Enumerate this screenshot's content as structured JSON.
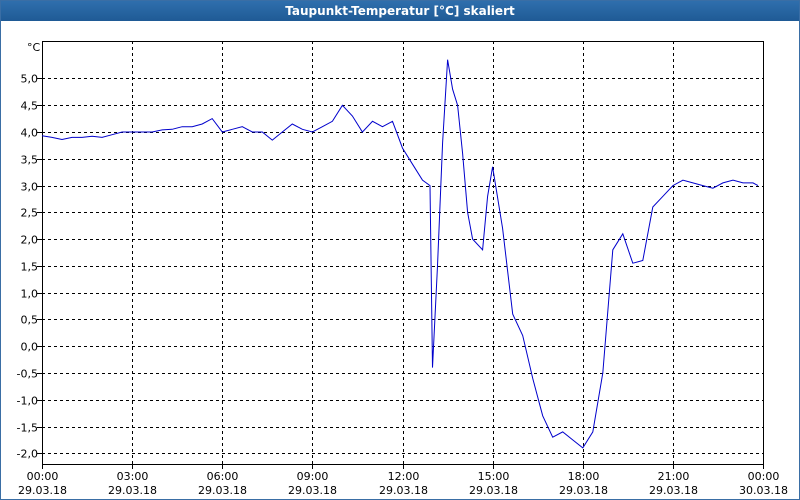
{
  "window": {
    "title": "Taupunkt-Temperatur [°C] skaliert"
  },
  "chart_data": {
    "type": "line",
    "title": "Taupunkt-Temperatur [°C] skaliert",
    "ylabel": "°C",
    "xlabel": "",
    "ylim": [
      -2.2,
      5.7
    ],
    "xlim_hours": [
      0,
      24
    ],
    "grid": true,
    "y_ticks": [
      "5,0",
      "4,5",
      "4,0",
      "3,5",
      "3,0",
      "2,5",
      "2,0",
      "1,5",
      "1,0",
      "0,5",
      "0,0",
      "-0,5",
      "-1,0",
      "-1,5",
      "-2,0"
    ],
    "x_ticks": [
      {
        "time": "00:00",
        "date": "29.03.18"
      },
      {
        "time": "03:00",
        "date": "29.03.18"
      },
      {
        "time": "06:00",
        "date": "29.03.18"
      },
      {
        "time": "09:00",
        "date": "29.03.18"
      },
      {
        "time": "12:00",
        "date": "29.03.18"
      },
      {
        "time": "15:00",
        "date": "29.03.18"
      },
      {
        "time": "18:00",
        "date": "29.03.18"
      },
      {
        "time": "21:00",
        "date": "29.03.18"
      },
      {
        "time": "00:00",
        "date": "30.03.18"
      }
    ],
    "series": [
      {
        "color": "#0000cc",
        "points": [
          [
            "00:00",
            3.93
          ],
          [
            "00:20",
            3.9
          ],
          [
            "00:40",
            3.86
          ],
          [
            "01:00",
            3.9
          ],
          [
            "01:20",
            3.9
          ],
          [
            "01:40",
            3.92
          ],
          [
            "02:00",
            3.9
          ],
          [
            "02:20",
            3.95
          ],
          [
            "02:40",
            4.0
          ],
          [
            "03:00",
            4.0
          ],
          [
            "03:20",
            4.0
          ],
          [
            "03:40",
            4.0
          ],
          [
            "04:00",
            4.04
          ],
          [
            "04:20",
            4.05
          ],
          [
            "04:40",
            4.1
          ],
          [
            "05:00",
            4.1
          ],
          [
            "05:20",
            4.15
          ],
          [
            "05:40",
            4.25
          ],
          [
            "06:00",
            4.0
          ],
          [
            "06:20",
            4.05
          ],
          [
            "06:40",
            4.1
          ],
          [
            "07:00",
            4.0
          ],
          [
            "07:20",
            4.0
          ],
          [
            "07:40",
            3.85
          ],
          [
            "08:00",
            4.0
          ],
          [
            "08:20",
            4.15
          ],
          [
            "08:40",
            4.05
          ],
          [
            "09:00",
            4.0
          ],
          [
            "09:20",
            4.1
          ],
          [
            "09:40",
            4.2
          ],
          [
            "10:00",
            4.5
          ],
          [
            "10:20",
            4.3
          ],
          [
            "10:40",
            4.0
          ],
          [
            "11:00",
            4.2
          ],
          [
            "11:20",
            4.1
          ],
          [
            "11:40",
            4.2
          ],
          [
            "12:00",
            3.7
          ],
          [
            "12:20",
            3.4
          ],
          [
            "12:40",
            3.1
          ],
          [
            "12:55",
            3.0
          ],
          [
            "13:00",
            -0.4
          ],
          [
            "13:10",
            1.5
          ],
          [
            "13:20",
            3.8
          ],
          [
            "13:30",
            5.35
          ],
          [
            "13:40",
            4.8
          ],
          [
            "13:50",
            4.5
          ],
          [
            "14:00",
            3.6
          ],
          [
            "14:10",
            2.5
          ],
          [
            "14:20",
            2.0
          ],
          [
            "14:40",
            1.8
          ],
          [
            "14:50",
            2.8
          ],
          [
            "15:00",
            3.35
          ],
          [
            "15:20",
            2.2
          ],
          [
            "15:40",
            0.6
          ],
          [
            "16:00",
            0.2
          ],
          [
            "16:20",
            -0.6
          ],
          [
            "16:40",
            -1.3
          ],
          [
            "17:00",
            -1.7
          ],
          [
            "17:20",
            -1.6
          ],
          [
            "17:40",
            -1.75
          ],
          [
            "18:00",
            -1.9
          ],
          [
            "18:20",
            -1.6
          ],
          [
            "18:40",
            -0.5
          ],
          [
            "19:00",
            1.8
          ],
          [
            "19:20",
            2.1
          ],
          [
            "19:40",
            1.55
          ],
          [
            "20:00",
            1.6
          ],
          [
            "20:20",
            2.6
          ],
          [
            "20:40",
            2.8
          ],
          [
            "21:00",
            3.0
          ],
          [
            "21:20",
            3.1
          ],
          [
            "21:40",
            3.05
          ],
          [
            "22:00",
            3.0
          ],
          [
            "22:20",
            2.95
          ],
          [
            "22:40",
            3.05
          ],
          [
            "23:00",
            3.1
          ],
          [
            "23:20",
            3.05
          ],
          [
            "23:40",
            3.05
          ],
          [
            "23:50",
            3.0
          ]
        ]
      }
    ]
  }
}
